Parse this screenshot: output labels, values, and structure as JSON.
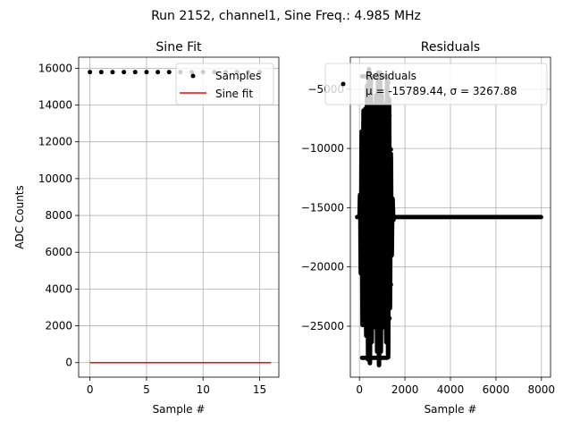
{
  "suptitle": "Run 2152, channel1, Sine Freq.: 4.985 MHz",
  "colors": {
    "samples": "#000000",
    "fit": "#ff0000",
    "residuals": "#000000",
    "grid": "#b0b0b0"
  },
  "chart_data": [
    {
      "type": "scatter",
      "title": "Sine Fit",
      "xlabel": "Sample #",
      "ylabel": "ADC Counts",
      "xlim": [
        -1,
        16.7
      ],
      "ylim": [
        -790,
        16600
      ],
      "xticks": [
        "0",
        "5",
        "10",
        "15"
      ],
      "xtick_values": [
        0,
        5,
        10,
        15
      ],
      "yticks": [
        "0",
        "2000",
        "4000",
        "6000",
        "8000",
        "10000",
        "12000",
        "14000",
        "16000"
      ],
      "ytick_values": [
        0,
        2000,
        4000,
        6000,
        8000,
        10000,
        12000,
        14000,
        16000
      ],
      "grid": true,
      "legend": {
        "placement": "upper-right",
        "entries": [
          "Samples",
          "Sine fit"
        ]
      },
      "series": [
        {
          "name": "Samples",
          "kind": "points",
          "x": [
            0,
            1,
            2,
            3,
            4,
            5,
            6,
            7,
            8,
            9,
            10,
            11,
            12,
            13,
            14,
            15
          ],
          "y": [
            15790,
            15790,
            15790,
            15790,
            15790,
            15790,
            15790,
            15790,
            15790,
            15790,
            15790,
            15790,
            15790,
            15790,
            15790,
            15790
          ]
        },
        {
          "name": "Sine fit",
          "kind": "line",
          "x": [
            0,
            16
          ],
          "y": [
            0,
            0
          ]
        }
      ]
    },
    {
      "type": "scatter",
      "title": "Residuals",
      "xlabel": "Sample #",
      "ylabel": "",
      "xlim": [
        -400,
        8400
      ],
      "ylim": [
        -29300,
        -2300
      ],
      "xticks": [
        "0",
        "2000",
        "4000",
        "6000",
        "8000"
      ],
      "xtick_values": [
        0,
        2000,
        4000,
        6000,
        8000
      ],
      "yticks": [
        "−25000",
        "−20000",
        "−15000",
        "−10000",
        "−5000"
      ],
      "ytick_values": [
        -25000,
        -20000,
        -15000,
        -10000,
        -5000
      ],
      "grid": true,
      "legend": {
        "placement": "upper-right",
        "entries": [
          "Residuals\nμ = -15789.44, σ = 3267.88"
        ]
      },
      "series": [
        {
          "name": "Residuals",
          "kind": "points",
          "baseline": -15789.44,
          "burst_x_range": [
            0,
            1500
          ],
          "burst_amplitude": 12500,
          "x_end": 8000
        }
      ]
    }
  ]
}
